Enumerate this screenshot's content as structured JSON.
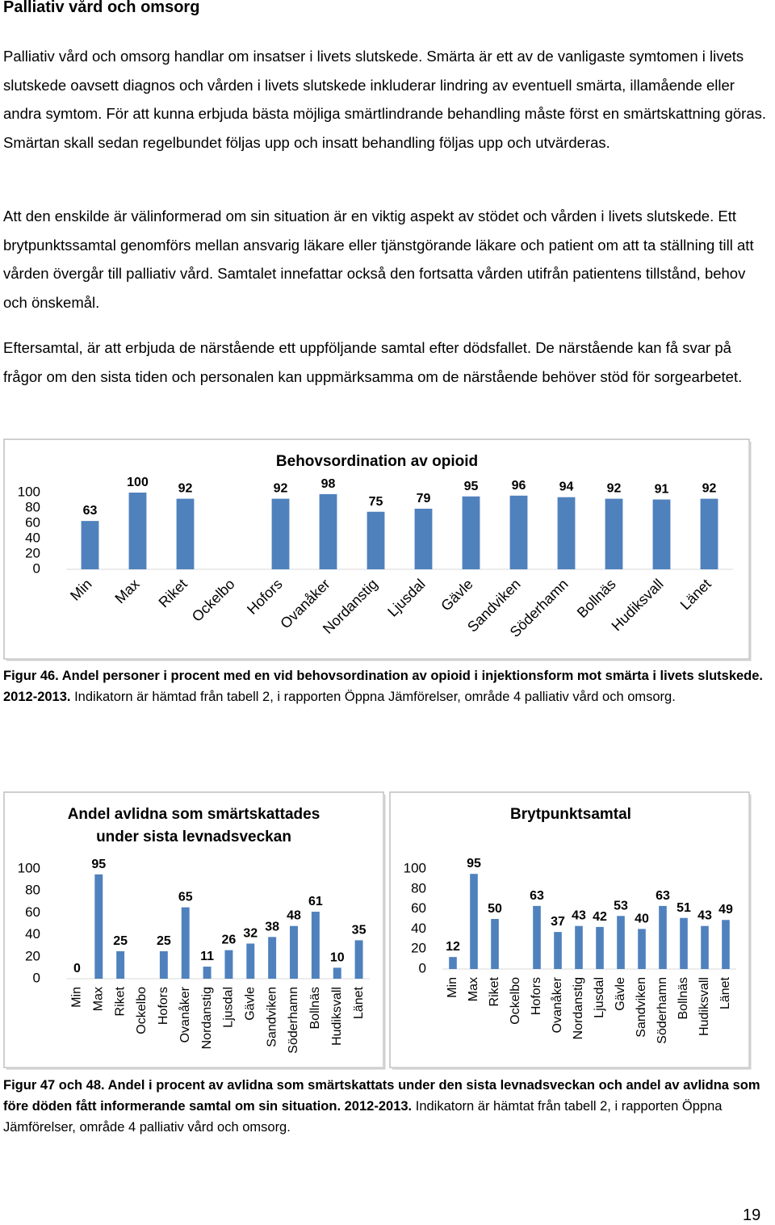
{
  "header": {
    "title": "Palliativ vård och omsorg"
  },
  "paragraphs": [
    "Palliativ vård och omsorg handlar om insatser i livets slutskede. Smärta är ett av de vanligaste symtomen i livets slutskede oavsett diagnos och vården i livets slutskede inkluderar lindring av eventuell smärta, illamående eller andra symtom. För att kunna erbjuda bästa möjliga smärtlindrande behandling måste först en smärtskattning göras. Smärtan skall sedan regelbundet följas upp och insatt behandling följas upp och utvärderas.",
    "Att den enskilde är välinformerad om sin situation är en viktig aspekt av stödet och vården i livets slutskede. Ett brytpunktssamtal genomförs mellan ansvarig läkare eller tjänstgörande läkare och patient om att ta ställning till att vården övergår till palliativ vård. Samtalet innefattar också den fortsatta vården utifrån patientens tillstånd, behov och önskemål.",
    "Eftersamtal, är att erbjuda de närstående ett uppföljande samtal efter dödsfallet. De närstående kan få svar på frågor om den sista tiden och personalen kan uppmärksamma om de närstående behöver stöd för sorgearbetet."
  ],
  "chart_data": [
    {
      "type": "bar",
      "title": "Behovsordination av opioid",
      "categories": [
        "Min",
        "Max",
        "Riket",
        "Ockelbo",
        "Hofors",
        "Ovanåker",
        "Nordanstig",
        "Ljusdal",
        "Gävle",
        "Sandviken",
        "Söderhamn",
        "Bollnäs",
        "Hudiksvall",
        "Länet"
      ],
      "values": [
        63,
        100,
        92,
        null,
        92,
        98,
        75,
        79,
        95,
        96,
        94,
        92,
        91,
        92
      ],
      "color": "#4f81bd",
      "ylim": [
        0,
        100
      ],
      "yticks": [
        0,
        20,
        40,
        60,
        80,
        100
      ]
    },
    {
      "type": "bar",
      "title": "Andel avlidna som smärtskattades under sista levnadsveckan",
      "categories": [
        "Min",
        "Max",
        "Riket",
        "Ockelbo",
        "Hofors",
        "Ovanåker",
        "Nordanstig",
        "Ljusdal",
        "Gävle",
        "Sandviken",
        "Söderhamn",
        "Bollnäs",
        "Hudiksvall",
        "Länet"
      ],
      "values": [
        0,
        95,
        25,
        null,
        25,
        65,
        11,
        26,
        32,
        38,
        48,
        61,
        10,
        35
      ],
      "color": "#4f81bd",
      "ylim": [
        0,
        100
      ],
      "yticks": [
        0,
        20,
        40,
        60,
        80,
        100
      ]
    },
    {
      "type": "bar",
      "title": "Brytpunktsamtal",
      "categories": [
        "Min",
        "Max",
        "Riket",
        "Ockelbo",
        "Hofors",
        "Ovanåker",
        "Nordanstig",
        "Ljusdal",
        "Gävle",
        "Sandviken",
        "Söderhamn",
        "Bollnäs",
        "Hudiksvall",
        "Länet"
      ],
      "values": [
        12,
        95,
        50,
        null,
        63,
        37,
        43,
        42,
        53,
        40,
        63,
        51,
        43,
        49
      ],
      "color": "#4f81bd",
      "ylim": [
        0,
        100
      ],
      "yticks": [
        0,
        20,
        40,
        60,
        80,
        100
      ]
    }
  ],
  "captions": [
    {
      "label": "Figur 46.",
      "bold": "Andel personer i procent med en vid behovsordination av opioid i injektionsform mot smärta i livets slutskede. 2012-2013.",
      "text": "Indikatorn är hämtad från tabell 2, i rapporten Öppna Jämförelser, område 4 palliativ vård och omsorg."
    },
    {
      "label": "Figur 47 och 48.",
      "bold": "Andel i procent av avlidna som smärtskattats under den sista levnadsveckan och andel av avlidna som före döden fått informerande samtal om sin situation. 2012-2013.",
      "text": "Indikatorn är hämtat från tabell 2, i rapporten Öppna Jämförelser, område 4 palliativ vård och omsorg."
    }
  ],
  "page_number": "19"
}
